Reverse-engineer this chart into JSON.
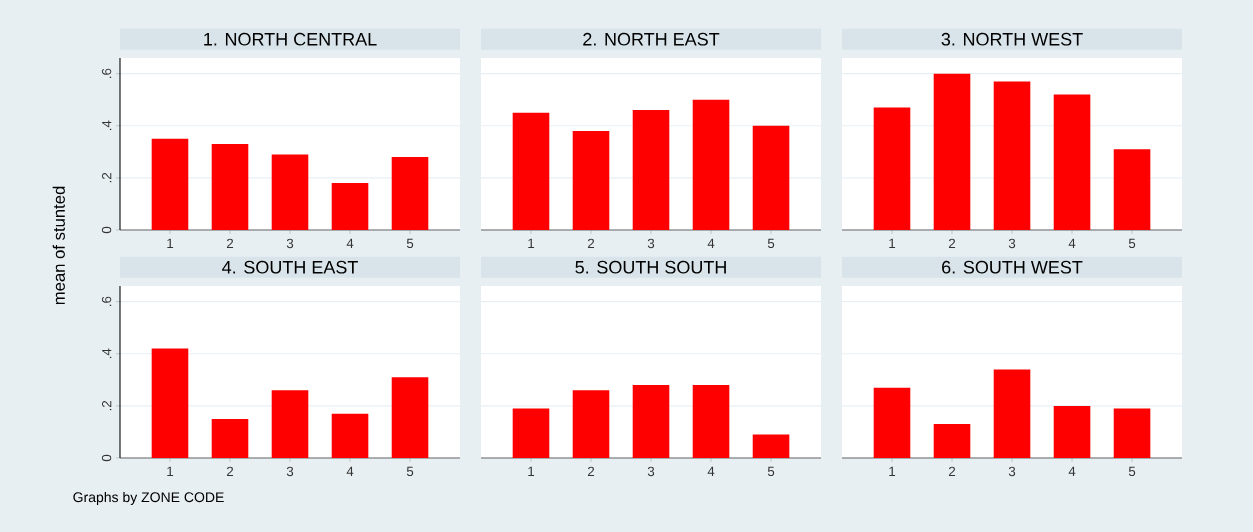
{
  "chart_data": [
    {
      "type": "bar",
      "title": "1. NORTH CENTRAL",
      "ylabel": "mean of stunted",
      "categories": [
        "1",
        "2",
        "3",
        "4",
        "5"
      ],
      "values": [
        0.35,
        0.33,
        0.29,
        0.18,
        0.28
      ],
      "color": "#ff0000",
      "ylim": [
        0,
        0.66
      ],
      "yticks": [
        0,
        {
          "value": 0.2,
          "label": ".2"
        },
        {
          "value": 0.4,
          "label": ".4"
        },
        {
          "value": 0.6,
          "label": ".6"
        }
      ],
      "grid": "y"
    },
    {
      "type": "bar",
      "title": "2. NORTH EAST",
      "categories": [
        "1",
        "2",
        "3",
        "4",
        "5"
      ],
      "values": [
        0.45,
        0.38,
        0.46,
        0.5,
        0.4
      ],
      "color": "#ff0000",
      "ylim": [
        0,
        0.66
      ],
      "yticks": [
        0,
        0.2,
        0.4,
        0.6
      ],
      "grid": "y",
      "tick_labels": "x"
    },
    {
      "type": "bar",
      "title": "3. NORTH WEST",
      "categories": [
        "1",
        "2",
        "3",
        "4",
        "5"
      ],
      "values": [
        0.47,
        0.6,
        0.57,
        0.52,
        0.31
      ],
      "color": "#ff0000",
      "ylim": [
        0,
        0.66
      ],
      "yticks": [
        0,
        0.2,
        0.4,
        0.6
      ],
      "grid": "y",
      "tick_labels": "x"
    },
    {
      "type": "bar",
      "title": "4. SOUTH EAST",
      "annotations": [
        "Graphs by ZONE CODE"
      ],
      "categories": [
        "1",
        "2",
        "3",
        "4",
        "5"
      ],
      "values": [
        0.42,
        0.15,
        0.26,
        0.17,
        0.31
      ],
      "color": "#ff0000",
      "ylim": [
        0,
        0.66
      ],
      "yticks": [
        0,
        {
          "value": 0.2,
          "label": ".2"
        },
        {
          "value": 0.4,
          "label": ".4"
        },
        {
          "value": 0.6,
          "label": ".6"
        }
      ],
      "grid": "y"
    },
    {
      "type": "bar",
      "title": "5. SOUTH SOUTH",
      "categories": [
        "1",
        "2",
        "3",
        "4",
        "5"
      ],
      "values": [
        0.19,
        0.26,
        0.28,
        0.28,
        0.09
      ],
      "color": "#ff0000",
      "ylim": [
        0,
        0.66
      ],
      "yticks": [
        0,
        0.2,
        0.4,
        0.6
      ],
      "grid": "y",
      "tick_labels": "x"
    },
    {
      "type": "bar",
      "title": "6. SOUTH WEST",
      "categories": [
        "1",
        "2",
        "3",
        "4",
        "5"
      ],
      "values": [
        0.27,
        0.13,
        0.34,
        0.2,
        0.19
      ],
      "color": "#ff0000",
      "ylim": [
        0,
        0.66
      ],
      "yticks": [
        0,
        0.2,
        0.4,
        0.6
      ],
      "grid": "y",
      "tick_labels": "x"
    }
  ]
}
